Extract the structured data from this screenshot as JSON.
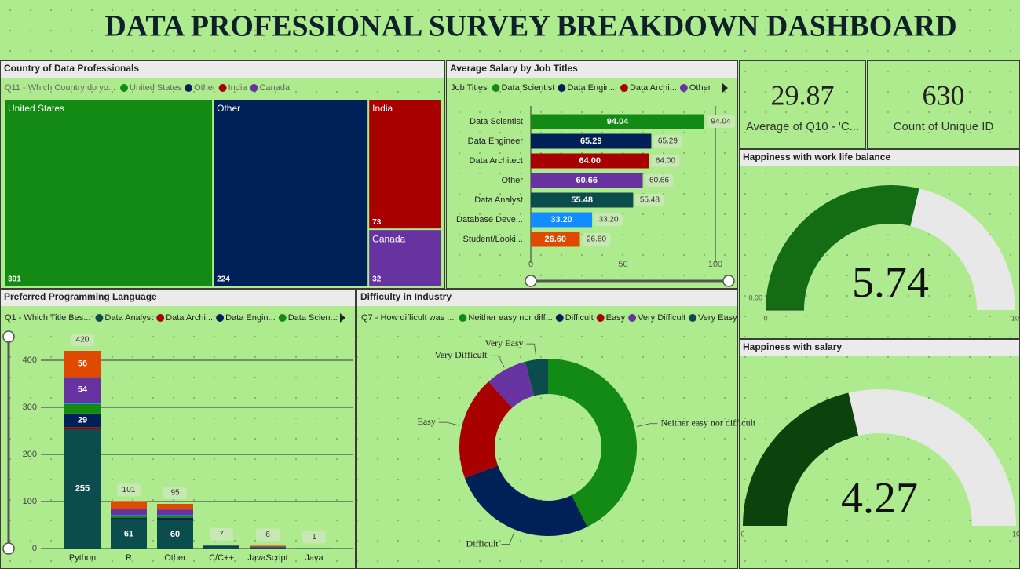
{
  "title": "DATA PROFESSIONAL SURVEY BREAKDOWN DASHBOARD",
  "chart_data": [
    {
      "type": "treemap",
      "title": "Country of Data Professionals",
      "legend_title": "Q11 - Which Country do yo...",
      "categories": [
        "United States",
        "Other",
        "India",
        "Canada"
      ],
      "values": [
        301,
        224,
        73,
        32
      ],
      "colors": [
        "#138a13",
        "#002158",
        "#a80000",
        "#6633a0"
      ]
    },
    {
      "type": "bar",
      "horizontal": true,
      "title": "Average Salary by Job Titles",
      "legend_title": "Job Titles",
      "legend": [
        {
          "name": "Data Scientist",
          "color": "#138a13"
        },
        {
          "name": "Data Engin...",
          "color": "#002158"
        },
        {
          "name": "Data Archi...",
          "color": "#a80000"
        },
        {
          "name": "Other",
          "color": "#6633a0"
        }
      ],
      "categories": [
        "Data Scientist",
        "Data Engineer",
        "Data Architect",
        "Other",
        "Data Analyst",
        "Database Deve...",
        "Student/Looki..."
      ],
      "values": [
        94.04,
        65.29,
        64,
        60.66,
        55.48,
        33.2,
        26.6
      ],
      "value_labels": [
        "94.04",
        "65.29",
        "64.00",
        "60.66",
        "55.48",
        "33.20",
        "26.60"
      ],
      "colors": [
        "#138a13",
        "#002158",
        "#a80000",
        "#6633a0",
        "#0b4d4d",
        "#118dff",
        "#e04a00"
      ],
      "xlim": [
        0,
        100
      ],
      "xticks": [
        0,
        50,
        100
      ],
      "grid": true
    },
    {
      "type": "card",
      "value": 29.87,
      "label": "Average of Q10 - 'C..."
    },
    {
      "type": "card",
      "value": 630,
      "label": "Count of Unique ID"
    },
    {
      "type": "gauge",
      "title": "Happiness with work life balance",
      "value": 5.74,
      "ylim": [
        0,
        10
      ],
      "yticks": [
        0,
        10
      ],
      "target": {
        "value": 0,
        "label": "0.00"
      },
      "color": "#146c14",
      "track_color": "#e8e8e8"
    },
    {
      "type": "gauge",
      "title": "Happiness with salary",
      "value": 4.27,
      "ylim": [
        0,
        10
      ],
      "yticks": [
        0,
        10
      ],
      "color": "#0c430c",
      "track_color": "#e8e8e8"
    },
    {
      "type": "bar",
      "stacked": true,
      "title": "Preferred Programming Language",
      "legend_title": "Q1 - Which Title Bes...",
      "categories": [
        "Python",
        "R",
        "Other",
        "C/C++",
        "JavaScript",
        "Java"
      ],
      "series": [
        {
          "name": "Data Analyst",
          "color": "#0b4d4d",
          "values": [
            255,
            61,
            60,
            4,
            2,
            1
          ]
        },
        {
          "name": "Data Archi...",
          "color": "#a80000",
          "values": [
            3,
            1,
            1,
            0,
            0,
            0
          ]
        },
        {
          "name": "Data Engin...",
          "color": "#002158",
          "values": [
            29,
            3,
            4,
            1,
            1,
            0
          ]
        },
        {
          "name": "Data Scien...",
          "color": "#138a13",
          "values": [
            20,
            5,
            5,
            1,
            0,
            0
          ]
        },
        {
          "color": "#118dff",
          "values": [
            3,
            1,
            1,
            0,
            0,
            0
          ]
        },
        {
          "color": "#6633a0",
          "values": [
            54,
            14,
            12,
            1,
            1,
            0
          ]
        },
        {
          "color": "#e04a00",
          "values": [
            56,
            16,
            12,
            0,
            2,
            0
          ]
        }
      ],
      "totals": [
        420,
        101,
        95,
        7,
        6,
        1
      ],
      "ylim": [
        0,
        450
      ],
      "yticks": [
        0,
        100,
        200,
        300,
        400
      ],
      "grid": true
    },
    {
      "type": "donut",
      "title": "Difficulty in Industry",
      "legend_title": "Q7 - How difficult was ...",
      "categories": [
        "Neither easy nor difficult",
        "Difficult",
        "Easy",
        "Very Difficult",
        "Very Easy"
      ],
      "legend_labels": [
        "Neither easy nor diff...",
        "Difficult",
        "Easy",
        "Very Difficult",
        "Very Easy"
      ],
      "values": [
        42.7,
        26.7,
        18.9,
        7.5,
        4.2
      ],
      "colors": [
        "#138a13",
        "#002158",
        "#a80000",
        "#6633a0",
        "#0b4d4d"
      ]
    }
  ]
}
